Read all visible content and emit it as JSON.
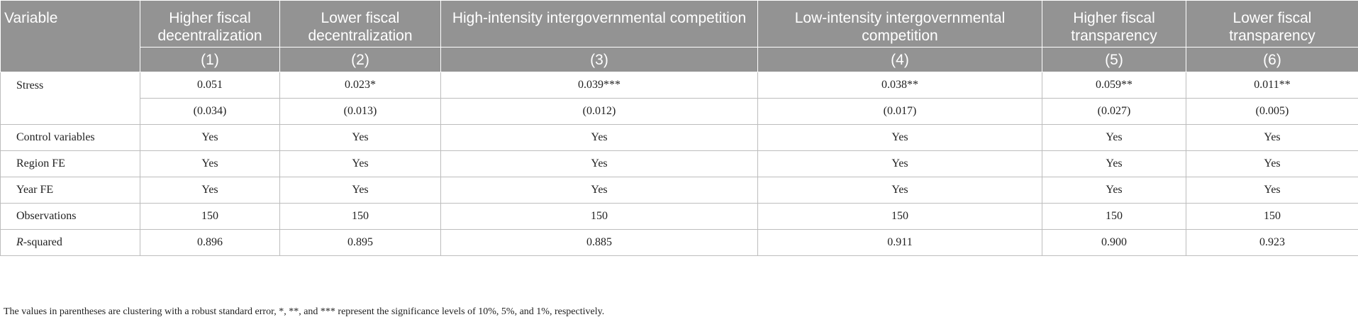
{
  "table": {
    "header_variable": "Variable",
    "columns": [
      {
        "title": "Higher fiscal decentralization",
        "number": "(1)"
      },
      {
        "title": "Lower fiscal decentralization",
        "number": "(2)"
      },
      {
        "title": "High-intensity intergovernmental competition",
        "number": "(3)"
      },
      {
        "title": "Low-intensity intergovernmental competition",
        "number": "(4)"
      },
      {
        "title": "Higher fiscal transparency",
        "number": "(5)"
      },
      {
        "title": "Lower fiscal transparency",
        "number": "(6)"
      }
    ],
    "rows": {
      "stress": {
        "label": "Stress",
        "coef": [
          "0.051",
          "0.023*",
          "0.039***",
          "0.038**",
          "0.059**",
          "0.011**"
        ],
        "se": [
          "(0.034)",
          "(0.013)",
          "(0.012)",
          "(0.017)",
          "(0.027)",
          "(0.005)"
        ]
      },
      "control": {
        "label": "Control variables",
        "values": [
          "Yes",
          "Yes",
          "Yes",
          "Yes",
          "Yes",
          "Yes"
        ]
      },
      "region_fe": {
        "label": "Region FE",
        "values": [
          "Yes",
          "Yes",
          "Yes",
          "Yes",
          "Yes",
          "Yes"
        ]
      },
      "year_fe": {
        "label": "Year FE",
        "values": [
          "Yes",
          "Yes",
          "Yes",
          "Yes",
          "Yes",
          "Yes"
        ]
      },
      "observations": {
        "label": "Observations",
        "values": [
          "150",
          "150",
          "150",
          "150",
          "150",
          "150"
        ]
      },
      "r_squared": {
        "label_italic": "R",
        "label_rest": "-squared",
        "values": [
          "0.896",
          "0.895",
          "0.885",
          "0.911",
          "0.900",
          "0.923"
        ]
      }
    }
  },
  "note": "The values in parentheses are clustering with a robust standard error, *, **, and *** represent the significance levels of 10%, 5%, and 1%, respectively."
}
